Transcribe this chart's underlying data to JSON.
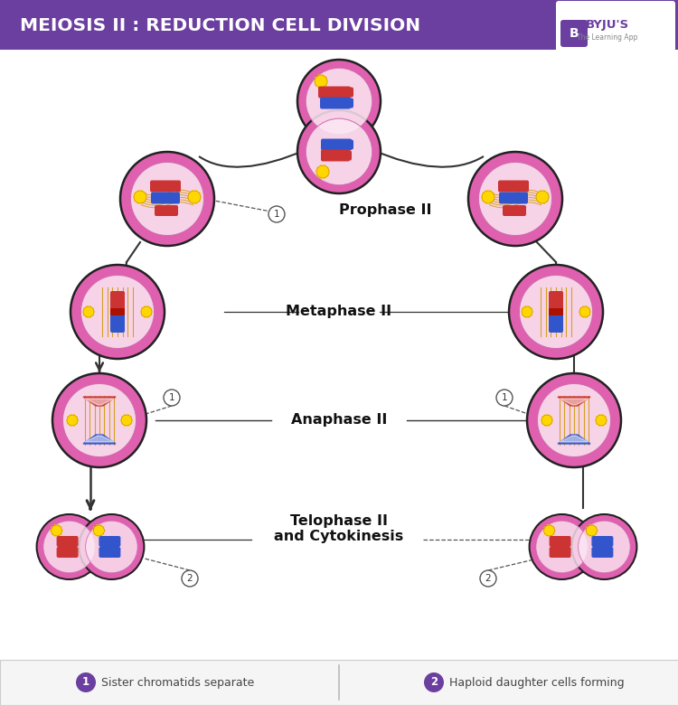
{
  "title": "MEIOSIS II : REDUCTION CELL DIVISION",
  "title_bg": "#6b3fa0",
  "title_fg": "#ffffff",
  "bg_color": "#ffffff",
  "legend1_text": "Sister chromatids separate",
  "legend2_text": "Haploid daughter cells forming",
  "legend_circle_color": "#6b3fa0",
  "phase_labels": {
    "prophase": "Prophase II",
    "metaphase": "Metaphase II",
    "anaphase": "Anaphase II",
    "telophase": "Telophase II\nand Cytokinesis"
  },
  "cell_outer_color": "#e060b0",
  "cell_inner_color": "#fce8f3",
  "cell_ring_color": "#cc66aa",
  "arrow_color": "#333333",
  "spindle_color": "#cc9900",
  "chr_red": "#cc3333",
  "chr_blue": "#3355cc",
  "sun_color": "#FFD700",
  "note_outline": "#555555"
}
